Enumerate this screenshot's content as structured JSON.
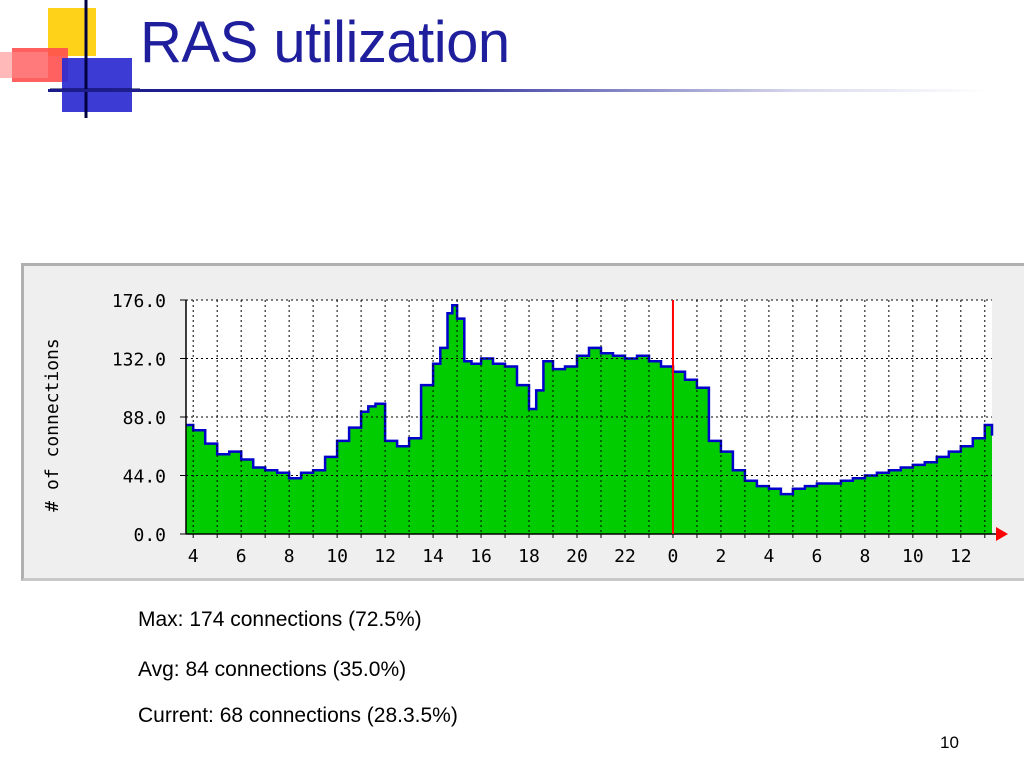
{
  "slide": {
    "title": "RAS utilization",
    "page_number": "10"
  },
  "stats": {
    "max": "Max: 174 connections (72.5%)",
    "avg": "Avg: 84 connections (35.0%)",
    "current": "Current: 68 connections (28.3.5%)"
  },
  "colors": {
    "title": "#1f1f9e",
    "fill": "#00cc00",
    "outline": "#0000cc",
    "now_marker": "#ff0000",
    "grid": "#000000"
  },
  "chart_data": {
    "type": "area",
    "ylabel": "# of connections",
    "ylim": [
      0,
      176
    ],
    "yticks": [
      "0.0",
      "44.0",
      "88.0",
      "132.0",
      "176.0"
    ],
    "xticks": [
      "4",
      "6",
      "8",
      "10",
      "12",
      "14",
      "16",
      "18",
      "20",
      "22",
      "0",
      "2",
      "4",
      "6",
      "8",
      "10",
      "12"
    ],
    "x_unit": "hour (4:00 one day to ~13:30 the next)",
    "grid": true,
    "now_marker_hour": 24,
    "x_range_hours": [
      3.7,
      37.3
    ],
    "series": [
      {
        "x": [
          3.7,
          4.0,
          4.5,
          5.0,
          5.5,
          6.0,
          6.5,
          7.0,
          7.5,
          8.0,
          8.5,
          9.0,
          9.5,
          10.0,
          10.5,
          11.0,
          11.3,
          11.6,
          12.0,
          12.5,
          13.0,
          13.5,
          14.0,
          14.3,
          14.6,
          14.8,
          15.0,
          15.3,
          15.6,
          16.0,
          16.5,
          17.0,
          17.5,
          18.0,
          18.3,
          18.6,
          19.0,
          19.5,
          20.0,
          20.5,
          21.0,
          21.5,
          22.0,
          22.5,
          23.0,
          23.5,
          24.0,
          24.5,
          25.0,
          25.5,
          26.0,
          26.5,
          27.0,
          27.5,
          28.0,
          28.5,
          29.0,
          29.5,
          30.0,
          30.5,
          31.0,
          31.5,
          32.0,
          32.5,
          33.0,
          33.5,
          34.0,
          34.5,
          35.0,
          35.5,
          36.0,
          36.5,
          37.0,
          37.3
        ],
        "values": [
          82,
          78,
          68,
          60,
          62,
          56,
          50,
          48,
          46,
          42,
          46,
          48,
          58,
          70,
          80,
          92,
          96,
          98,
          70,
          66,
          72,
          112,
          128,
          140,
          166,
          172,
          162,
          130,
          128,
          132,
          128,
          126,
          112,
          94,
          108,
          130,
          124,
          126,
          134,
          140,
          136,
          134,
          132,
          134,
          130,
          126,
          122,
          116,
          110,
          70,
          62,
          48,
          40,
          36,
          34,
          30,
          34,
          36,
          38,
          38,
          40,
          42,
          44,
          46,
          48,
          50,
          52,
          54,
          58,
          62,
          66,
          72,
          82,
          74
        ]
      }
    ]
  }
}
